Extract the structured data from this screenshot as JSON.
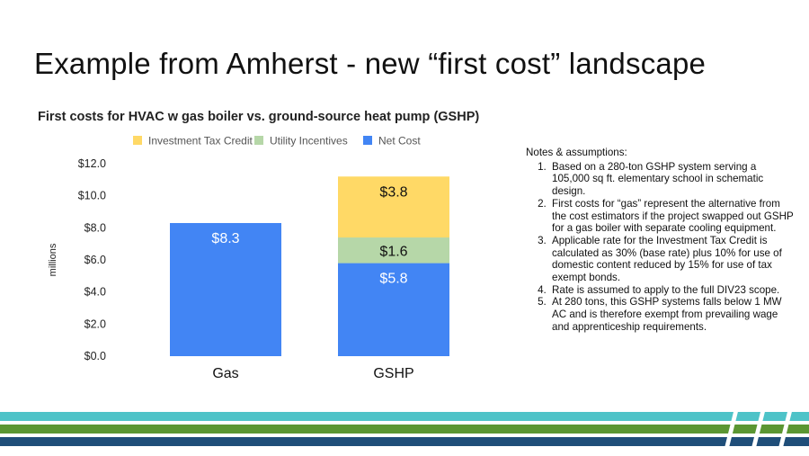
{
  "slide": {
    "title": "Example from Amherst - new “first cost” landscape"
  },
  "chart_data": {
    "type": "bar",
    "stacked": true,
    "title": "First costs for HVAC w gas boiler vs. ground-source heat pump (GSHP)",
    "xlabel": "",
    "ylabel": "millions",
    "categories": [
      "Gas",
      "GSHP"
    ],
    "series": [
      {
        "name": "Net Cost",
        "values": [
          8.3,
          5.8
        ],
        "labels": [
          "$8.3",
          "$5.8"
        ],
        "color": "#4285f4",
        "label_color": "#ffffff"
      },
      {
        "name": "Utility Incentives",
        "values": [
          0,
          1.6
        ],
        "labels": [
          "",
          "$1.6"
        ],
        "color": "#b6d7a8",
        "label_color": "#111111"
      },
      {
        "name": "Investment Tax Credit",
        "values": [
          0,
          3.8
        ],
        "labels": [
          "",
          "$3.8"
        ],
        "color": "#ffd966",
        "label_color": "#111111"
      }
    ],
    "legend_order": [
      "Investment Tax Credit",
      "Utility Incentives",
      "Net Cost"
    ],
    "legend_position": "top",
    "ylim": [
      0,
      12
    ],
    "yticks": [
      0,
      2,
      4,
      6,
      8,
      10,
      12
    ],
    "ytick_labels": [
      "$0.0",
      "$2.0",
      "$4.0",
      "$6.0",
      "$8.0",
      "$10.0",
      "$12.0"
    ],
    "grid": false
  },
  "notes": {
    "heading": "Notes & assumptions:",
    "items": [
      "Based on a 280-ton GSHP system serving a 105,000 sq ft. elementary school in schematic design.",
      "First costs for “gas” represent the alternative from the cost estimators if the project swapped out GSHP for a gas boiler with separate cooling equipment.",
      "Applicable rate for the Investment Tax Credit is calculated as 30% (base rate) plus 10% for use of domestic content reduced by 15% for use of tax exempt bonds.",
      "Rate is assumed to apply to the full DIV23 scope.",
      "At 280 tons, this GSHP systems falls below 1 MW AC and is therefore exempt from prevailing wage and apprenticeship requirements."
    ]
  },
  "footer": {
    "stripe_colors": [
      "#4ec3c8",
      "#5b9632",
      "#1f4e79"
    ]
  }
}
